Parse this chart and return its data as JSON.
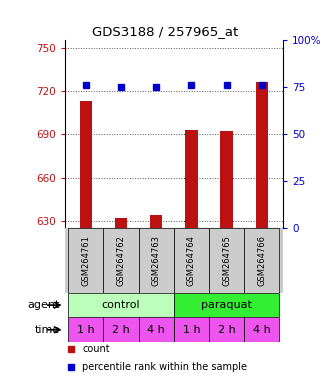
{
  "title": "GDS3188 / 257965_at",
  "samples": [
    "GSM264761",
    "GSM264762",
    "GSM264763",
    "GSM264764",
    "GSM264765",
    "GSM264766"
  ],
  "counts": [
    713,
    632,
    634,
    693,
    692,
    726
  ],
  "percentiles": [
    76,
    75,
    75,
    76,
    76,
    76
  ],
  "ylim_left": [
    625,
    755
  ],
  "ylim_right": [
    0,
    100
  ],
  "yticks_left": [
    630,
    660,
    690,
    720,
    750
  ],
  "yticks_right": [
    0,
    25,
    50,
    75,
    100
  ],
  "ytick_right_labels": [
    "0",
    "25",
    "50",
    "75",
    "100%"
  ],
  "bar_color": "#bb1111",
  "dot_color": "#0000cc",
  "agent_labels": [
    "control",
    "paraquat"
  ],
  "agent_colors": [
    "#bbffbb",
    "#33ee33"
  ],
  "time_labels": [
    "1 h",
    "2 h",
    "4 h",
    "1 h",
    "2 h",
    "4 h"
  ],
  "time_color": "#ee55ee",
  "gridline_color": "#555555",
  "background_color": "#ffffff",
  "sample_box_color": "#cccccc",
  "legend_count_color": "#bb1111",
  "legend_dot_color": "#0000cc",
  "bar_width": 0.35
}
